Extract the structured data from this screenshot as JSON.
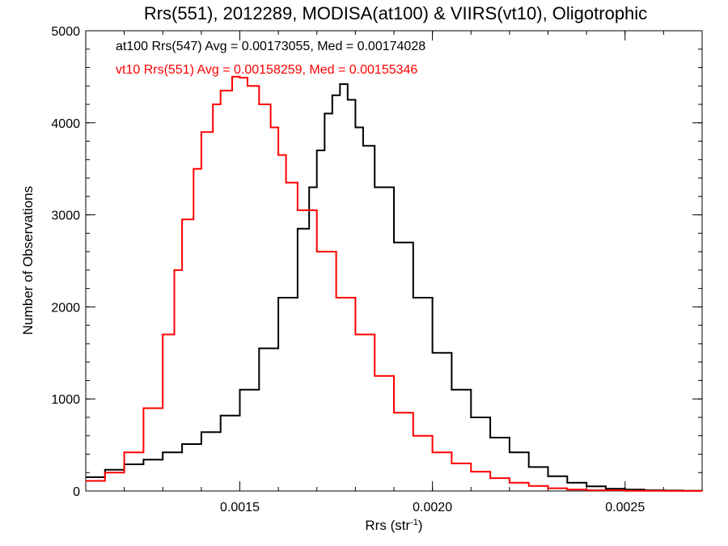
{
  "chart_data": {
    "type": "line",
    "title": "Rrs(551), 2012289, MODISA(at100) & VIIRS(vt10), Oligotrophic",
    "xlabel": "Rrs (str",
    "xlabel_sup": "-1",
    "xlabel_close": ")",
    "ylabel": "Number of Observations",
    "xlim": [
      0.0011,
      0.0027
    ],
    "ylim": [
      0,
      5000
    ],
    "x_ticks": [
      {
        "value": 0.0015,
        "label": "0.0015"
      },
      {
        "value": 0.002,
        "label": "0.0020"
      },
      {
        "value": 0.0025,
        "label": "0.0025"
      }
    ],
    "x_minor_step": 0.0001,
    "y_ticks": [
      {
        "value": 0,
        "label": "0"
      },
      {
        "value": 1000,
        "label": "1000"
      },
      {
        "value": 2000,
        "label": "2000"
      },
      {
        "value": 3000,
        "label": "3000"
      },
      {
        "value": 4000,
        "label": "4000"
      },
      {
        "value": 5000,
        "label": "5000"
      }
    ],
    "y_minor_step": 200,
    "grid": false,
    "legend": "none",
    "series": [
      {
        "color": "#000000",
        "step": true,
        "points": [
          [
            0.0011,
            150
          ],
          [
            0.00115,
            230
          ],
          [
            0.0012,
            290
          ],
          [
            0.00125,
            340
          ],
          [
            0.0013,
            420
          ],
          [
            0.00135,
            510
          ],
          [
            0.0014,
            640
          ],
          [
            0.00145,
            820
          ],
          [
            0.0015,
            1100
          ],
          [
            0.00155,
            1550
          ],
          [
            0.0016,
            2100
          ],
          [
            0.00165,
            2850
          ],
          [
            0.00168,
            3300
          ],
          [
            0.0017,
            3700
          ],
          [
            0.00172,
            4100
          ],
          [
            0.00174,
            4300
          ],
          [
            0.00176,
            4420
          ],
          [
            0.00178,
            4250
          ],
          [
            0.0018,
            3950
          ],
          [
            0.00182,
            3750
          ],
          [
            0.00185,
            3300
          ],
          [
            0.0019,
            2700
          ],
          [
            0.00195,
            2100
          ],
          [
            0.002,
            1500
          ],
          [
            0.00205,
            1100
          ],
          [
            0.0021,
            800
          ],
          [
            0.00215,
            580
          ],
          [
            0.0022,
            420
          ],
          [
            0.00225,
            260
          ],
          [
            0.0023,
            160
          ],
          [
            0.00235,
            90
          ],
          [
            0.0024,
            50
          ],
          [
            0.00245,
            25
          ],
          [
            0.0025,
            15
          ],
          [
            0.00255,
            8
          ],
          [
            0.0026,
            5
          ],
          [
            0.00265,
            2
          ],
          [
            0.0027,
            1
          ]
        ]
      },
      {
        "color": "#ff0000",
        "step": true,
        "points": [
          [
            0.0011,
            110
          ],
          [
            0.00115,
            200
          ],
          [
            0.0012,
            420
          ],
          [
            0.00125,
            900
          ],
          [
            0.0013,
            1700
          ],
          [
            0.00133,
            2400
          ],
          [
            0.00135,
            2950
          ],
          [
            0.00138,
            3500
          ],
          [
            0.0014,
            3900
          ],
          [
            0.00143,
            4200
          ],
          [
            0.00145,
            4350
          ],
          [
            0.00148,
            4500
          ],
          [
            0.0015,
            4490
          ],
          [
            0.00152,
            4400
          ],
          [
            0.00155,
            4200
          ],
          [
            0.00158,
            3950
          ],
          [
            0.0016,
            3650
          ],
          [
            0.00162,
            3350
          ],
          [
            0.00165,
            3050
          ],
          [
            0.0017,
            2600
          ],
          [
            0.00175,
            2100
          ],
          [
            0.0018,
            1700
          ],
          [
            0.00185,
            1250
          ],
          [
            0.0019,
            850
          ],
          [
            0.00195,
            600
          ],
          [
            0.002,
            420
          ],
          [
            0.00205,
            300
          ],
          [
            0.0021,
            210
          ],
          [
            0.00215,
            140
          ],
          [
            0.0022,
            90
          ],
          [
            0.00225,
            55
          ],
          [
            0.0023,
            30
          ],
          [
            0.00235,
            15
          ],
          [
            0.0024,
            8
          ],
          [
            0.0025,
            3
          ],
          [
            0.0026,
            1
          ],
          [
            0.0027,
            0
          ]
        ]
      }
    ],
    "annotations": [
      {
        "text": "at100 Rrs(547) Avg = 0.00173055, Med = 0.00174028",
        "color": "#000000"
      },
      {
        "text": "vt10 Rrs(551) Avg = 0.00158259, Med = 0.00155346",
        "color": "#ff0000"
      }
    ]
  }
}
